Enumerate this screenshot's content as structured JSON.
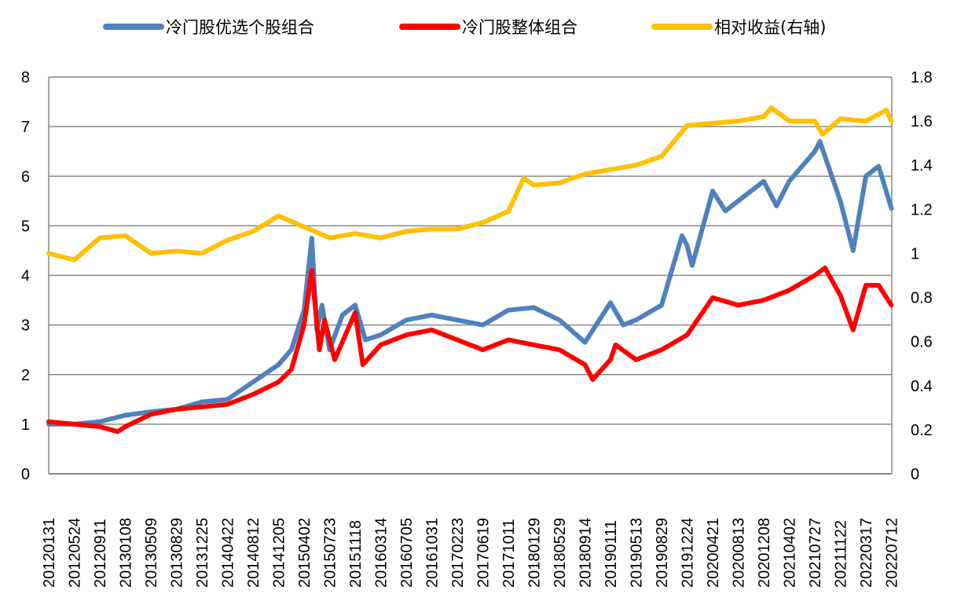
{
  "chart_data": {
    "type": "line",
    "title": "",
    "xlabel": "",
    "ylabel": "",
    "y_left": {
      "ticks": [
        "0",
        "1",
        "2",
        "3",
        "4",
        "5",
        "6",
        "7",
        "8"
      ],
      "range": [
        0,
        8
      ]
    },
    "y_right": {
      "ticks": [
        "0",
        "0.2",
        "0.4",
        "0.6",
        "0.8",
        "1",
        "1.2",
        "1.4",
        "1.6",
        "1.8"
      ],
      "range": [
        0,
        1.8
      ]
    },
    "grid": "horizontal",
    "legend_position": "top",
    "x_tick_labels": [
      "20120131",
      "20120524",
      "20120911",
      "20130108",
      "20130509",
      "20130829",
      "20131225",
      "20140422",
      "20140812",
      "20141205",
      "20150402",
      "20150723",
      "20151118",
      "20160314",
      "20160705",
      "20161031",
      "20170223",
      "20170619",
      "20171011",
      "20180129",
      "20180529",
      "20180914",
      "20190111",
      "20190513",
      "20190829",
      "20191224",
      "20200421",
      "20200813",
      "20201208",
      "20210402",
      "20210727",
      "20211122",
      "20220317",
      "20220712"
    ],
    "series": [
      {
        "name": "冷门股优选个股组合",
        "axis": "left",
        "color": "#4F81BD",
        "points": [
          [
            0,
            1.0
          ],
          [
            1,
            1.0
          ],
          [
            2,
            1.05
          ],
          [
            3,
            1.18
          ],
          [
            4,
            1.25
          ],
          [
            5,
            1.3
          ],
          [
            6,
            1.45
          ],
          [
            7,
            1.5
          ],
          [
            8,
            1.85
          ],
          [
            9,
            2.2
          ],
          [
            9.5,
            2.5
          ],
          [
            10,
            3.3
          ],
          [
            10.3,
            4.75
          ],
          [
            10.5,
            2.9
          ],
          [
            10.7,
            3.4
          ],
          [
            11,
            2.5
          ],
          [
            11.5,
            3.2
          ],
          [
            12,
            3.4
          ],
          [
            12.4,
            2.7
          ],
          [
            13,
            2.8
          ],
          [
            14,
            3.1
          ],
          [
            15,
            3.2
          ],
          [
            16,
            3.1
          ],
          [
            17,
            3.0
          ],
          [
            18,
            3.3
          ],
          [
            19,
            3.35
          ],
          [
            20,
            3.1
          ],
          [
            21,
            2.65
          ],
          [
            22,
            3.45
          ],
          [
            22.5,
            3.0
          ],
          [
            23,
            3.1
          ],
          [
            24,
            3.4
          ],
          [
            24.8,
            4.8
          ],
          [
            25,
            4.6
          ],
          [
            25.2,
            4.2
          ],
          [
            26,
            5.7
          ],
          [
            26.5,
            5.3
          ],
          [
            27,
            5.5
          ],
          [
            28,
            5.9
          ],
          [
            28.5,
            5.4
          ],
          [
            29,
            5.9
          ],
          [
            30,
            6.5
          ],
          [
            30.2,
            6.7
          ],
          [
            31,
            5.5
          ],
          [
            31.5,
            4.5
          ],
          [
            32,
            6.0
          ],
          [
            32.5,
            6.2
          ],
          [
            33,
            5.35
          ]
        ]
      },
      {
        "name": "冷门股整体组合",
        "axis": "left",
        "color": "#FF0000",
        "points": [
          [
            0,
            1.05
          ],
          [
            1,
            1.0
          ],
          [
            2,
            0.95
          ],
          [
            2.7,
            0.85
          ],
          [
            3,
            0.95
          ],
          [
            4,
            1.2
          ],
          [
            5,
            1.3
          ],
          [
            6,
            1.35
          ],
          [
            7,
            1.4
          ],
          [
            8,
            1.6
          ],
          [
            9,
            1.85
          ],
          [
            9.5,
            2.1
          ],
          [
            10,
            3.0
          ],
          [
            10.3,
            4.1
          ],
          [
            10.6,
            2.5
          ],
          [
            10.8,
            3.1
          ],
          [
            11.2,
            2.3
          ],
          [
            12,
            3.25
          ],
          [
            12.3,
            2.2
          ],
          [
            13,
            2.6
          ],
          [
            14,
            2.8
          ],
          [
            15,
            2.9
          ],
          [
            16,
            2.7
          ],
          [
            17,
            2.5
          ],
          [
            18,
            2.7
          ],
          [
            19,
            2.6
          ],
          [
            20,
            2.5
          ],
          [
            21,
            2.2
          ],
          [
            21.3,
            1.9
          ],
          [
            22,
            2.3
          ],
          [
            22.2,
            2.6
          ],
          [
            23,
            2.3
          ],
          [
            24,
            2.5
          ],
          [
            25,
            2.8
          ],
          [
            26,
            3.55
          ],
          [
            27,
            3.4
          ],
          [
            28,
            3.5
          ],
          [
            29,
            3.7
          ],
          [
            30,
            4.0
          ],
          [
            30.4,
            4.15
          ],
          [
            31,
            3.6
          ],
          [
            31.5,
            2.9
          ],
          [
            32,
            3.8
          ],
          [
            32.5,
            3.8
          ],
          [
            33,
            3.4
          ]
        ]
      },
      {
        "name": "相对收益(右轴)",
        "axis": "right",
        "color": "#FFC000",
        "points": [
          [
            0,
            1.0
          ],
          [
            1,
            0.97
          ],
          [
            2,
            1.07
          ],
          [
            3,
            1.08
          ],
          [
            4,
            1.0
          ],
          [
            5,
            1.01
          ],
          [
            6,
            1.0
          ],
          [
            7,
            1.06
          ],
          [
            8,
            1.1
          ],
          [
            9,
            1.17
          ],
          [
            10,
            1.12
          ],
          [
            11,
            1.07
          ],
          [
            12,
            1.09
          ],
          [
            13,
            1.07
          ],
          [
            14,
            1.1
          ],
          [
            15,
            1.11
          ],
          [
            16,
            1.11
          ],
          [
            17,
            1.14
          ],
          [
            18,
            1.19
          ],
          [
            18.6,
            1.34
          ],
          [
            19,
            1.31
          ],
          [
            20,
            1.32
          ],
          [
            21,
            1.36
          ],
          [
            22,
            1.38
          ],
          [
            23,
            1.4
          ],
          [
            24,
            1.44
          ],
          [
            25,
            1.58
          ],
          [
            26,
            1.59
          ],
          [
            27,
            1.6
          ],
          [
            28,
            1.62
          ],
          [
            28.3,
            1.66
          ],
          [
            29,
            1.6
          ],
          [
            30,
            1.6
          ],
          [
            30.3,
            1.54
          ],
          [
            31,
            1.61
          ],
          [
            32,
            1.6
          ],
          [
            32.8,
            1.65
          ],
          [
            33,
            1.6
          ]
        ]
      }
    ]
  }
}
